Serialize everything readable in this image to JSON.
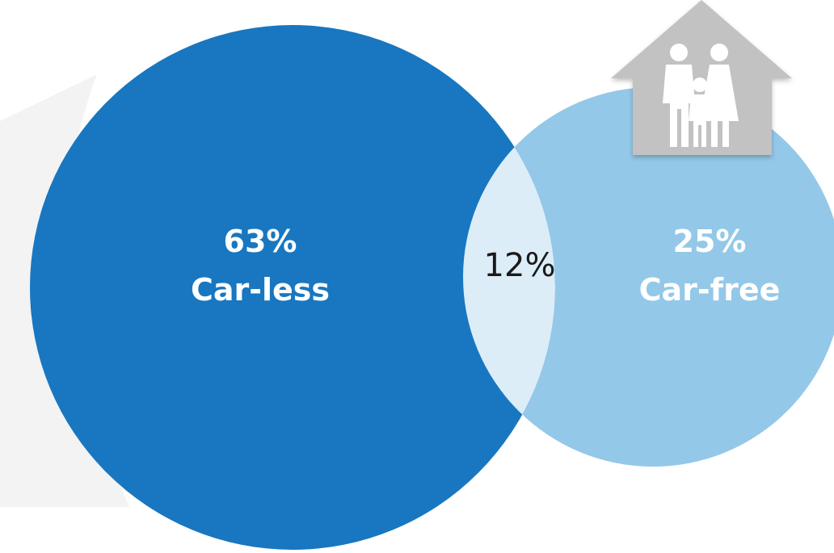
{
  "venn": {
    "left": {
      "percent": "63%",
      "label": "Car-less",
      "color": "#1877c0"
    },
    "right": {
      "percent": "25%",
      "label": "Car-free",
      "color": "#93c8e8"
    },
    "overlap": {
      "percent": "12%",
      "color": "#dcedf8"
    }
  },
  "icon": {
    "name": "family-house-icon",
    "color": "#c2c2c2"
  },
  "backdrop": {
    "color": "#f3f3f3"
  }
}
